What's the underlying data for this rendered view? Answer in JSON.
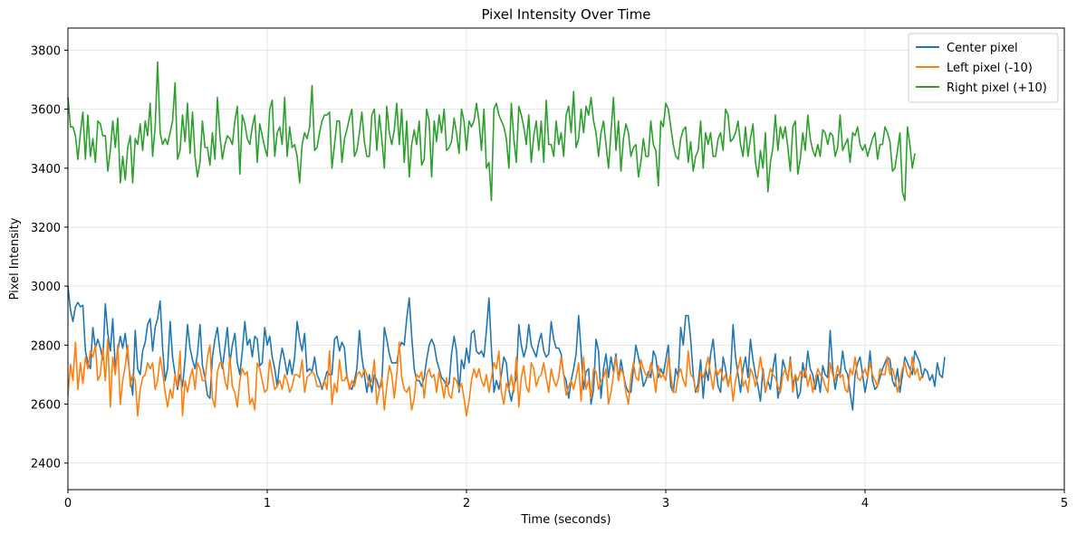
{
  "chart_data": {
    "type": "line",
    "title": "Pixel Intensity Over Time",
    "xlabel": "Time (seconds)",
    "ylabel": "Pixel Intensity",
    "xlim": [
      0,
      5
    ],
    "ylim": [
      2310,
      3875
    ],
    "xticks": [
      0,
      1,
      2,
      3,
      4,
      5
    ],
    "yticks": [
      2400,
      2600,
      2800,
      3000,
      3200,
      3400,
      3600,
      3800
    ],
    "grid": true,
    "legend_position": "top-right",
    "series": [
      {
        "name": "Center pixel",
        "color": "#1f77b4",
        "x_start": 0,
        "x_step": 0.0125,
        "values": [
          3000,
          2920,
          2880,
          2930,
          2945,
          2930,
          2935,
          2780,
          2740,
          2720,
          2860,
          2790,
          2820,
          2790,
          2750,
          2940,
          2840,
          2780,
          2890,
          2720,
          2780,
          2830,
          2790,
          2840,
          2760,
          2690,
          2630,
          2850,
          2720,
          2700,
          2780,
          2810,
          2870,
          2890,
          2780,
          2860,
          2890,
          2950,
          2790,
          2680,
          2720,
          2880,
          2760,
          2700,
          2650,
          2700,
          2660,
          2750,
          2870,
          2790,
          2750,
          2720,
          2770,
          2870,
          2730,
          2690,
          2630,
          2620,
          2760,
          2820,
          2860,
          2780,
          2720,
          2790,
          2860,
          2740,
          2800,
          2840,
          2740,
          2700,
          2780,
          2880,
          2800,
          2820,
          2760,
          2830,
          2820,
          2730,
          2740,
          2860,
          2800,
          2830,
          2760,
          2720,
          2660,
          2740,
          2790,
          2750,
          2700,
          2750,
          2700,
          2760,
          2880,
          2820,
          2780,
          2840,
          2710,
          2720,
          2710,
          2760,
          2700,
          2680,
          2650,
          2680,
          2710,
          2700,
          2700,
          2820,
          2830,
          2780,
          2810,
          2790,
          2690,
          2660,
          2650,
          2680,
          2720,
          2850,
          2760,
          2700,
          2640,
          2700,
          2640,
          2700,
          2680,
          2650,
          2670,
          2860,
          2820,
          2770,
          2740,
          2740,
          2740,
          2790,
          2810,
          2800,
          2890,
          2960,
          2830,
          2720,
          2680,
          2680,
          2660,
          2690,
          2750,
          2800,
          2820,
          2800,
          2750,
          2720,
          2690,
          2680,
          2660,
          2670,
          2770,
          2830,
          2780,
          2640,
          2750,
          2720,
          2790,
          2740,
          2840,
          2850,
          2780,
          2770,
          2780,
          2760,
          2850,
          2960,
          2790,
          2640,
          2680,
          2650,
          2700,
          2760,
          2740,
          2650,
          2610,
          2660,
          2690,
          2870,
          2800,
          2760,
          2790,
          2870,
          2800,
          2780,
          2760,
          2810,
          2840,
          2780,
          2760,
          2770,
          2880,
          2820,
          2790,
          2790,
          2770,
          2700,
          2680,
          2620,
          2680,
          2720,
          2770,
          2900,
          2780,
          2650,
          2710,
          2720,
          2600,
          2650,
          2820,
          2780,
          2620,
          2720,
          2770,
          2690,
          2760,
          2710,
          2770,
          2680,
          2750,
          2700,
          2660,
          2640,
          2640,
          2720,
          2800,
          2760,
          2720,
          2660,
          2680,
          2710,
          2690,
          2780,
          2760,
          2690,
          2720,
          2700,
          2750,
          2800,
          2660,
          2640,
          2720,
          2690,
          2860,
          2800,
          2900,
          2900,
          2820,
          2700,
          2640,
          2670,
          2750,
          2620,
          2720,
          2680,
          2770,
          2820,
          2730,
          2660,
          2640,
          2760,
          2720,
          2660,
          2700,
          2870,
          2760,
          2700,
          2640,
          2720,
          2760,
          2690,
          2820,
          2750,
          2700,
          2660,
          2610,
          2720,
          2640,
          2680,
          2650,
          2720,
          2770,
          2620,
          2660,
          2750,
          2720,
          2680,
          2760,
          2660,
          2700,
          2620,
          2640,
          2740,
          2690,
          2780,
          2720,
          2700,
          2650,
          2700,
          2640,
          2730,
          2700,
          2690,
          2850,
          2720,
          2650,
          2700,
          2700,
          2780,
          2720,
          2700,
          2640,
          2580,
          2700,
          2740,
          2760,
          2700,
          2640,
          2690,
          2780,
          2680,
          2650,
          2660,
          2690,
          2720,
          2740,
          2760,
          2750,
          2680,
          2660,
          2720,
          2640,
          2700,
          2760,
          2740,
          2720,
          2700,
          2780,
          2760,
          2740,
          2690,
          2720,
          2710,
          2680,
          2700,
          2660,
          2740,
          2700,
          2690,
          2760
        ]
      },
      {
        "name": "Left pixel (-10)",
        "color": "#ff7f0e",
        "x_start": 0,
        "x_step": 0.0125,
        "values": [
          2630,
          2735,
          2680,
          2810,
          2650,
          2740,
          2670,
          2760,
          2720,
          2780,
          2760,
          2800,
          2680,
          2700,
          2790,
          2680,
          2820,
          2590,
          2760,
          2700,
          2800,
          2600,
          2680,
          2730,
          2800,
          2660,
          2700,
          2680,
          2560,
          2650,
          2690,
          2700,
          2740,
          2720,
          2740,
          2650,
          2680,
          2760,
          2710,
          2640,
          2590,
          2650,
          2620,
          2700,
          2660,
          2780,
          2560,
          2680,
          2640,
          2690,
          2720,
          2650,
          2740,
          2720,
          2680,
          2680,
          2760,
          2800,
          2620,
          2590,
          2710,
          2740,
          2740,
          2680,
          2650,
          2760,
          2660,
          2640,
          2590,
          2680,
          2720,
          2700,
          2710,
          2600,
          2620,
          2580,
          2740,
          2720,
          2680,
          2640,
          2650,
          2750,
          2700,
          2650,
          2660,
          2680,
          2650,
          2700,
          2680,
          2640,
          2660,
          2700,
          2700,
          2690,
          2750,
          2640,
          2690,
          2700,
          2710,
          2700,
          2660,
          2660,
          2660,
          2680,
          2650,
          2780,
          2600,
          2670,
          2640,
          2750,
          2680,
          2680,
          2700,
          2650,
          2680,
          2660,
          2700,
          2710,
          2690,
          2720,
          2700,
          2660,
          2680,
          2750,
          2600,
          2650,
          2690,
          2580,
          2660,
          2730,
          2700,
          2620,
          2700,
          2810,
          2690,
          2650,
          2640,
          2660,
          2580,
          2620,
          2700,
          2690,
          2710,
          2620,
          2700,
          2720,
          2690,
          2700,
          2640,
          2710,
          2670,
          2620,
          2690,
          2630,
          2620,
          2690,
          2680,
          2650,
          2670,
          2620,
          2560,
          2610,
          2680,
          2720,
          2690,
          2720,
          2680,
          2660,
          2700,
          2640,
          2690,
          2740,
          2720,
          2780,
          2640,
          2600,
          2670,
          2650,
          2700,
          2640,
          2760,
          2590,
          2690,
          2730,
          2660,
          2640,
          2740,
          2720,
          2660,
          2690,
          2700,
          2740,
          2690,
          2640,
          2720,
          2680,
          2660,
          2690,
          2760,
          2700,
          2630,
          2660,
          2680,
          2650,
          2690,
          2740,
          2610,
          2760,
          2650,
          2680,
          2620,
          2720,
          2710,
          2650,
          2680,
          2690,
          2720,
          2600,
          2640,
          2700,
          2760,
          2680,
          2720,
          2700,
          2640,
          2600,
          2690,
          2740,
          2690,
          2680,
          2750,
          2720,
          2700,
          2690,
          2740,
          2700,
          2640,
          2730,
          2690,
          2700,
          2680,
          2760,
          2700,
          2640,
          2640,
          2700,
          2720,
          2680,
          2660,
          2780,
          2700,
          2690,
          2650,
          2640,
          2710,
          2690,
          2720,
          2760,
          2700,
          2650,
          2720,
          2700,
          2720,
          2680,
          2700,
          2660,
          2700,
          2610,
          2680,
          2720,
          2760,
          2660,
          2680,
          2640,
          2720,
          2700,
          2660,
          2700,
          2760,
          2700,
          2640,
          2680,
          2720,
          2700,
          2690,
          2660,
          2640,
          2700,
          2720,
          2680,
          2750,
          2640,
          2700,
          2680,
          2710,
          2690,
          2720,
          2660,
          2700,
          2640,
          2680,
          2720,
          2700,
          2690,
          2660,
          2640,
          2740,
          2700,
          2680,
          2730,
          2690,
          2700,
          2650,
          2640,
          2720,
          2700,
          2760,
          2690,
          2680,
          2700,
          2720,
          2690,
          2740,
          2700,
          2680,
          2660,
          2720,
          2700,
          2700,
          2760,
          2700,
          2720,
          2690,
          2640,
          2680,
          2720,
          2740,
          2700,
          2690,
          2760,
          2700,
          2720,
          2680,
          2700
        ]
      },
      {
        "name": "Right pixel (+10)",
        "color": "#2ca02c",
        "x_start": 0,
        "x_step": 0.0125,
        "values": [
          3640,
          3540,
          3540,
          3510,
          3430,
          3520,
          3590,
          3430,
          3580,
          3440,
          3500,
          3420,
          3560,
          3550,
          3510,
          3510,
          3390,
          3460,
          3560,
          3470,
          3570,
          3350,
          3440,
          3360,
          3470,
          3510,
          3350,
          3500,
          3480,
          3550,
          3460,
          3560,
          3510,
          3620,
          3440,
          3540,
          3760,
          3520,
          3480,
          3500,
          3480,
          3520,
          3560,
          3690,
          3430,
          3460,
          3580,
          3490,
          3620,
          3450,
          3590,
          3440,
          3370,
          3420,
          3560,
          3470,
          3470,
          3410,
          3520,
          3430,
          3640,
          3510,
          3430,
          3480,
          3510,
          3500,
          3480,
          3560,
          3610,
          3380,
          3580,
          3550,
          3500,
          3480,
          3540,
          3580,
          3420,
          3550,
          3510,
          3470,
          3440,
          3600,
          3630,
          3440,
          3520,
          3540,
          3480,
          3640,
          3440,
          3540,
          3470,
          3480,
          3440,
          3350,
          3480,
          3520,
          3500,
          3540,
          3680,
          3460,
          3470,
          3520,
          3560,
          3580,
          3580,
          3590,
          3400,
          3480,
          3560,
          3560,
          3420,
          3500,
          3530,
          3570,
          3600,
          3440,
          3460,
          3520,
          3590,
          3490,
          3440,
          3440,
          3580,
          3600,
          3460,
          3580,
          3500,
          3400,
          3610,
          3520,
          3480,
          3530,
          3620,
          3480,
          3600,
          3420,
          3560,
          3370,
          3480,
          3530,
          3480,
          3560,
          3410,
          3430,
          3600,
          3560,
          3370,
          3560,
          3490,
          3580,
          3520,
          3600,
          3460,
          3470,
          3490,
          3570,
          3520,
          3450,
          3600,
          3560,
          3460,
          3560,
          3540,
          3560,
          3620,
          3560,
          3460,
          3600,
          3400,
          3420,
          3290,
          3600,
          3620,
          3580,
          3560,
          3540,
          3500,
          3400,
          3620,
          3500,
          3420,
          3610,
          3580,
          3540,
          3480,
          3580,
          3420,
          3510,
          3560,
          3460,
          3560,
          3420,
          3630,
          3480,
          3480,
          3440,
          3560,
          3480,
          3520,
          3440,
          3580,
          3610,
          3520,
          3660,
          3470,
          3500,
          3600,
          3520,
          3610,
          3580,
          3640,
          3560,
          3520,
          3440,
          3520,
          3560,
          3480,
          3400,
          3520,
          3640,
          3460,
          3560,
          3390,
          3500,
          3550,
          3520,
          3440,
          3470,
          3480,
          3370,
          3420,
          3500,
          3440,
          3440,
          3560,
          3480,
          3460,
          3340,
          3560,
          3540,
          3620,
          3600,
          3540,
          3480,
          3440,
          3430,
          3500,
          3530,
          3540,
          3420,
          3490,
          3390,
          3440,
          3460,
          3560,
          3400,
          3520,
          3480,
          3520,
          3440,
          3440,
          3500,
          3520,
          3460,
          3600,
          3580,
          3490,
          3500,
          3520,
          3560,
          3480,
          3440,
          3540,
          3440,
          3500,
          3550,
          3420,
          3370,
          3460,
          3400,
          3520,
          3320,
          3420,
          3470,
          3580,
          3460,
          3540,
          3500,
          3540,
          3470,
          3390,
          3540,
          3560,
          3380,
          3430,
          3520,
          3460,
          3580,
          3500,
          3460,
          3440,
          3480,
          3440,
          3530,
          3520,
          3480,
          3520,
          3510,
          3440,
          3470,
          3580,
          3460,
          3480,
          3500,
          3420,
          3520,
          3510,
          3540,
          3480,
          3460,
          3480,
          3440,
          3470,
          3500,
          3520,
          3430,
          3480,
          3480,
          3540,
          3520,
          3490,
          3390,
          3400,
          3460,
          3520,
          3320,
          3290,
          3540,
          3480,
          3400,
          3450
        ]
      }
    ]
  }
}
